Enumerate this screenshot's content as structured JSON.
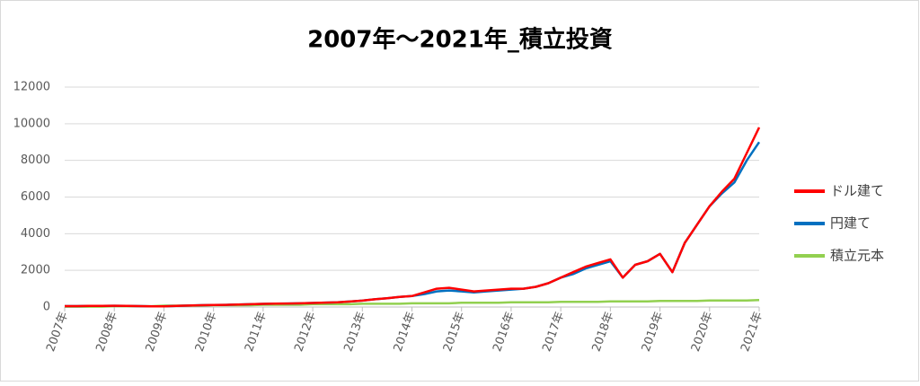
{
  "chart_data": {
    "type": "line",
    "title": "2007年～2021年_積立投資",
    "x": [
      2007,
      2007.25,
      2007.5,
      2007.75,
      2008,
      2008.25,
      2008.5,
      2008.75,
      2009,
      2009.25,
      2009.5,
      2009.75,
      2010,
      2010.25,
      2010.5,
      2010.75,
      2011,
      2011.25,
      2011.5,
      2011.75,
      2012,
      2012.25,
      2012.5,
      2012.75,
      2013,
      2013.25,
      2013.5,
      2013.75,
      2014,
      2014.25,
      2014.5,
      2014.75,
      2015,
      2015.25,
      2015.5,
      2015.75,
      2016,
      2016.25,
      2016.5,
      2016.75,
      2017,
      2017.25,
      2017.5,
      2017.75,
      2018,
      2018.25,
      2018.5,
      2018.75,
      2019,
      2019.25,
      2019.5,
      2019.75,
      2020,
      2020.25,
      2020.5,
      2020.75,
      2021
    ],
    "series": [
      {
        "name": "ドル建て",
        "color": "#ff0000",
        "values": [
          50,
          50,
          60,
          60,
          70,
          60,
          50,
          40,
          40,
          60,
          80,
          100,
          110,
          120,
          130,
          150,
          170,
          180,
          190,
          200,
          220,
          240,
          260,
          300,
          350,
          420,
          480,
          550,
          600,
          800,
          1000,
          1050,
          950,
          850,
          900,
          950,
          1000,
          1000,
          1100,
          1300,
          1600,
          1900,
          2200,
          2400,
          2600,
          1600,
          2300,
          2500,
          2900,
          1900,
          3500,
          4500,
          5500,
          6300,
          7000,
          8400,
          9800
        ]
      },
      {
        "name": "円建て",
        "color": "#0070c0",
        "values": [
          50,
          50,
          60,
          60,
          70,
          60,
          50,
          40,
          40,
          60,
          80,
          100,
          110,
          120,
          130,
          150,
          170,
          180,
          190,
          200,
          220,
          240,
          260,
          300,
          350,
          420,
          480,
          550,
          600,
          700,
          850,
          900,
          850,
          800,
          850,
          900,
          950,
          1000,
          1100,
          1300,
          1600,
          1800,
          2100,
          2300,
          2500,
          1600,
          2300,
          2500,
          2900,
          1900,
          3500,
          4500,
          5500,
          6200,
          6800,
          8000,
          9000
        ]
      },
      {
        "name": "積立元本",
        "color": "#92d050",
        "values": [
          20,
          20,
          20,
          20,
          46,
          46,
          46,
          46,
          72,
          72,
          72,
          72,
          98,
          98,
          98,
          98,
          124,
          124,
          124,
          124,
          150,
          150,
          150,
          150,
          176,
          176,
          176,
          176,
          202,
          202,
          202,
          202,
          228,
          228,
          228,
          228,
          254,
          254,
          254,
          254,
          280,
          280,
          280,
          280,
          306,
          306,
          306,
          306,
          332,
          332,
          332,
          332,
          358,
          358,
          358,
          358,
          384
        ]
      }
    ],
    "xlim": [
      2007,
      2021
    ],
    "xticks": [
      {
        "value": 2007,
        "label": "2007年"
      },
      {
        "value": 2008,
        "label": "2008年"
      },
      {
        "value": 2009,
        "label": "2009年"
      },
      {
        "value": 2010,
        "label": "2010年"
      },
      {
        "value": 2011,
        "label": "2011年"
      },
      {
        "value": 2012,
        "label": "2012年"
      },
      {
        "value": 2013,
        "label": "2013年"
      },
      {
        "value": 2014,
        "label": "2014年"
      },
      {
        "value": 2015,
        "label": "2015年"
      },
      {
        "value": 2016,
        "label": "2016年"
      },
      {
        "value": 2017,
        "label": "2017年"
      },
      {
        "value": 2018,
        "label": "2018年"
      },
      {
        "value": 2019,
        "label": "2019年"
      },
      {
        "value": 2020,
        "label": "2020年"
      },
      {
        "value": 2021,
        "label": "2021年"
      }
    ],
    "ylim": [
      0,
      12000
    ],
    "yticks": [
      0,
      2000,
      4000,
      6000,
      8000,
      10000,
      12000
    ],
    "grid": true,
    "legend": "right"
  }
}
